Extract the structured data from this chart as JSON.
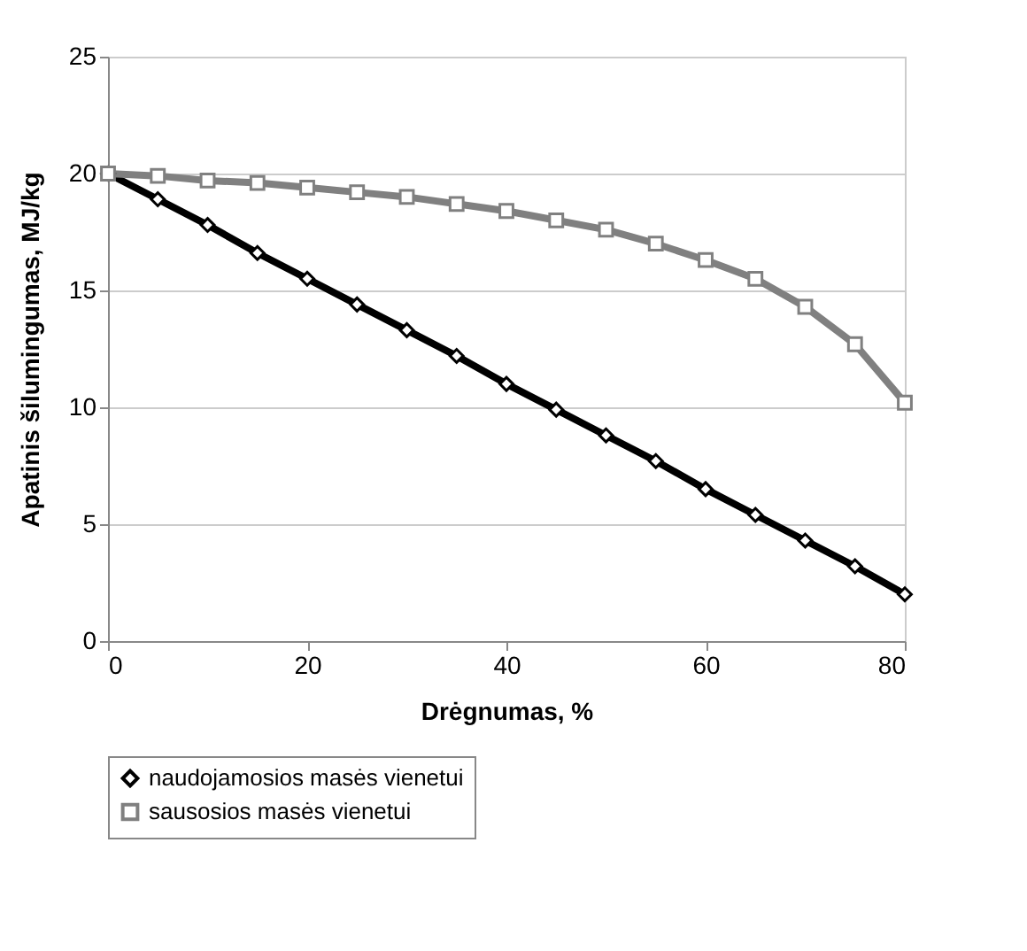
{
  "chart_data": {
    "type": "line",
    "xlabel": "Drėgnumas, %",
    "ylabel": "Apatinis šilumingumas, MJ/kg",
    "x": [
      0,
      5,
      10,
      15,
      20,
      25,
      30,
      35,
      40,
      45,
      50,
      55,
      60,
      65,
      70,
      75,
      80
    ],
    "series": [
      {
        "name": "naudojamosios masės vienetui",
        "color": "#000000",
        "marker": "diamond",
        "values": [
          20,
          18.9,
          17.8,
          16.6,
          15.5,
          14.4,
          13.3,
          12.2,
          11.0,
          9.9,
          8.8,
          7.7,
          6.5,
          5.4,
          4.3,
          3.2,
          2.0
        ]
      },
      {
        "name": "sausosios masės vienetui",
        "color": "#808080",
        "marker": "square",
        "values": [
          20,
          19.9,
          19.7,
          19.6,
          19.4,
          19.2,
          19.0,
          18.7,
          18.4,
          18.0,
          17.6,
          17.0,
          16.3,
          15.5,
          14.3,
          12.7,
          10.2
        ]
      }
    ],
    "xlim": [
      0,
      80
    ],
    "xticks": [
      0,
      20,
      40,
      60,
      80
    ],
    "ylim": [
      0,
      25
    ],
    "yticks": [
      0,
      5,
      10,
      15,
      20,
      25
    ],
    "grid": "y",
    "legend": "bottom",
    "line_style": "solid"
  }
}
